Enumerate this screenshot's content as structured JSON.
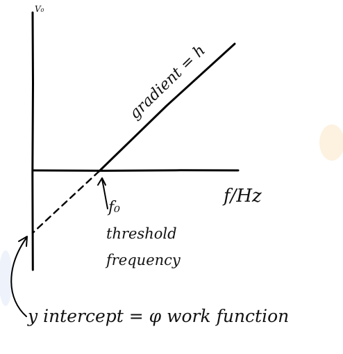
{
  "axes": {
    "y_label": "V₀",
    "x_label": "f/Hz"
  },
  "annotations": {
    "gradient": "gradient = h",
    "f0_symbol": "f₀",
    "threshold_line1": "threshold",
    "threshold_line2": "frequency",
    "intercept": "y intercept = φ work function"
  },
  "colors": {
    "ink": "#000000",
    "smudge": "#fdf1e0",
    "smudge_blue": "#eef3fb"
  }
}
